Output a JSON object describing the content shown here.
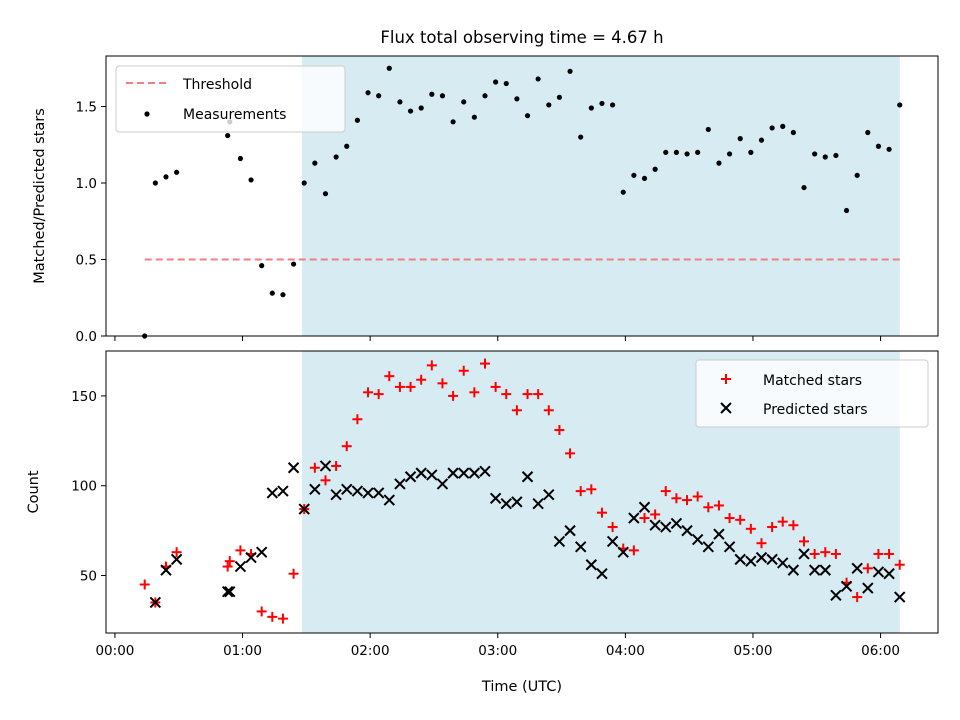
{
  "title": "Flux total observing time = 4.67 h",
  "colors": {
    "shade": "#add8e6",
    "threshold": "#f08080",
    "measurements": "#000000",
    "matched": "#ff0000",
    "predicted": "#000000"
  },
  "chart_data": [
    {
      "type": "scatter",
      "ylabel": "Matched/Predicted stars",
      "ylim": [
        0,
        1.83
      ],
      "xlim_hours": [
        -0.07,
        6.45
      ],
      "yticks": [
        0.0,
        0.5,
        1.0,
        1.5
      ],
      "ytick_labels": [
        "0.0",
        "0.5",
        "1.0",
        "1.5"
      ],
      "shaded_span": [
        "01:28",
        "06:09"
      ],
      "legend": {
        "location": "upper-left",
        "entries": [
          "Threshold",
          "Measurements"
        ]
      },
      "threshold": {
        "name": "Threshold",
        "value": 0.5,
        "x_range": [
          "00:14",
          "06:09"
        ],
        "style": "dashed"
      },
      "measurements": {
        "name": "Measurements",
        "x": [
          "00:14",
          "00:19",
          "00:24",
          "00:29",
          "00:53",
          "00:54",
          "00:59",
          "01:04",
          "01:09",
          "01:14",
          "01:19",
          "01:24",
          "01:29",
          "01:34",
          "01:39",
          "01:44",
          "01:49",
          "01:54",
          "01:59",
          "02:04",
          "02:09",
          "02:14",
          "02:19",
          "02:24",
          "02:29",
          "02:34",
          "02:39",
          "02:44",
          "02:49",
          "02:54",
          "02:59",
          "03:04",
          "03:09",
          "03:14",
          "03:19",
          "03:24",
          "03:29",
          "03:34",
          "03:39",
          "03:44",
          "03:49",
          "03:54",
          "03:59",
          "04:04",
          "04:09",
          "04:14",
          "04:19",
          "04:24",
          "04:29",
          "04:34",
          "04:39",
          "04:44",
          "04:49",
          "04:54",
          "04:59",
          "05:04",
          "05:09",
          "05:14",
          "05:19",
          "05:24",
          "05:29",
          "05:34",
          "05:39",
          "05:44",
          "05:49",
          "05:54",
          "05:59",
          "06:04",
          "06:09"
        ],
        "y": [
          0.0,
          1.0,
          1.04,
          1.07,
          1.31,
          1.4,
          1.16,
          1.02,
          0.46,
          0.28,
          0.27,
          0.47,
          1.0,
          1.13,
          0.93,
          1.17,
          1.24,
          1.41,
          1.59,
          1.57,
          1.75,
          1.53,
          1.47,
          1.49,
          1.58,
          1.57,
          1.4,
          1.53,
          1.43,
          1.57,
          1.66,
          1.65,
          1.55,
          1.44,
          1.68,
          1.51,
          1.56,
          1.73,
          1.3,
          1.49,
          1.52,
          1.51,
          0.94,
          1.05,
          1.03,
          1.09,
          1.2,
          1.2,
          1.19,
          1.2,
          1.35,
          1.13,
          1.19,
          1.29,
          1.2,
          1.28,
          1.36,
          1.37,
          1.33,
          0.97,
          1.19,
          1.17,
          1.18,
          0.82,
          1.05,
          1.33,
          1.24,
          1.22,
          1.51
        ]
      }
    },
    {
      "type": "scatter",
      "xlabel": "Time (UTC)",
      "ylabel": "Count",
      "ylim": [
        18,
        175
      ],
      "xlim_hours": [
        -0.07,
        6.45
      ],
      "xticks": [
        "00:00",
        "01:00",
        "02:00",
        "03:00",
        "04:00",
        "05:00",
        "06:00"
      ],
      "yticks": [
        50,
        100,
        150
      ],
      "ytick_labels": [
        "50",
        "100",
        "150"
      ],
      "shaded_span": [
        "01:28",
        "06:09"
      ],
      "legend": {
        "location": "upper-right",
        "entries": [
          "Matched stars",
          "Predicted stars"
        ]
      },
      "series": [
        {
          "name": "Matched stars",
          "marker": "plus",
          "x": [
            "00:14",
            "00:19",
            "00:24",
            "00:29",
            "00:53",
            "00:54",
            "00:59",
            "01:04",
            "01:09",
            "01:14",
            "01:19",
            "01:24",
            "01:29",
            "01:34",
            "01:39",
            "01:44",
            "01:49",
            "01:54",
            "01:59",
            "02:04",
            "02:09",
            "02:14",
            "02:19",
            "02:24",
            "02:29",
            "02:34",
            "02:39",
            "02:44",
            "02:49",
            "02:54",
            "02:59",
            "03:04",
            "03:09",
            "03:14",
            "03:19",
            "03:24",
            "03:29",
            "03:34",
            "03:39",
            "03:44",
            "03:49",
            "03:54",
            "03:59",
            "04:04",
            "04:09",
            "04:14",
            "04:19",
            "04:24",
            "04:29",
            "04:34",
            "04:39",
            "04:44",
            "04:49",
            "04:54",
            "04:59",
            "05:04",
            "05:09",
            "05:14",
            "05:19",
            "05:24",
            "05:29",
            "05:34",
            "05:39",
            "05:44",
            "05:49",
            "05:54",
            "05:59",
            "06:04",
            "06:09"
          ],
          "y": [
            45,
            35,
            55,
            63,
            55,
            58,
            64,
            62,
            30,
            27,
            26,
            51,
            87,
            110,
            103,
            111,
            122,
            137,
            152,
            151,
            161,
            155,
            155,
            159,
            167,
            157,
            150,
            164,
            152,
            168,
            155,
            151,
            142,
            151,
            151,
            142,
            131,
            118,
            97,
            98,
            85,
            77,
            65,
            64,
            82,
            84,
            97,
            93,
            92,
            94,
            88,
            89,
            82,
            81,
            76,
            68,
            77,
            80,
            78,
            69,
            62,
            63,
            62,
            46,
            38,
            54,
            62,
            62,
            56
          ]
        },
        {
          "name": "Predicted stars",
          "marker": "x",
          "x": [
            "00:14",
            "00:19",
            "00:24",
            "00:29",
            "00:53",
            "00:54",
            "00:59",
            "01:04",
            "01:09",
            "01:14",
            "01:19",
            "01:24",
            "01:29",
            "01:34",
            "01:39",
            "01:44",
            "01:49",
            "01:54",
            "01:59",
            "02:04",
            "02:09",
            "02:14",
            "02:19",
            "02:24",
            "02:29",
            "02:34",
            "02:39",
            "02:44",
            "02:49",
            "02:54",
            "02:59",
            "03:04",
            "03:09",
            "03:14",
            "03:19",
            "03:24",
            "03:29",
            "03:34",
            "03:39",
            "03:44",
            "03:49",
            "03:54",
            "03:59",
            "04:04",
            "04:09",
            "04:14",
            "04:19",
            "04:24",
            "04:29",
            "04:34",
            "04:39",
            "04:44",
            "04:49",
            "04:54",
            "04:59",
            "05:04",
            "05:09",
            "05:14",
            "05:19",
            "05:24",
            "05:29",
            "05:34",
            "05:39",
            "05:44",
            "05:49",
            "05:54",
            "05:59",
            "06:04",
            "06:09"
          ],
          "y": [
            null,
            35,
            53,
            59,
            41,
            41,
            55,
            60,
            63,
            96,
            97,
            110,
            87,
            98,
            111,
            95,
            98,
            97,
            96,
            96,
            92,
            101,
            105,
            107,
            106,
            101,
            107,
            107,
            107,
            108,
            93,
            90,
            91,
            105,
            90,
            95,
            69,
            75,
            66,
            56,
            51,
            69,
            63,
            82,
            88,
            78,
            77,
            79,
            75,
            70,
            66,
            73,
            66,
            59,
            58,
            60,
            59,
            57,
            53,
            62,
            53,
            53,
            39,
            44,
            54,
            43,
            52,
            51,
            38
          ]
        }
      ]
    }
  ]
}
